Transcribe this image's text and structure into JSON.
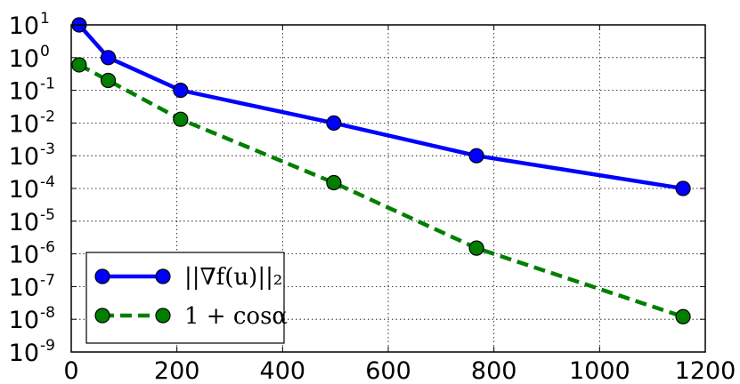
{
  "chart_data": {
    "type": "line",
    "title": "",
    "xlabel": "",
    "ylabel": "",
    "xlim": [
      0,
      1200
    ],
    "ylim": [
      1e-09,
      10
    ],
    "y_scale": "log",
    "grid": true,
    "legend_position": "bottom-left",
    "x_ticks": [
      {
        "value": 0,
        "label": "0"
      },
      {
        "value": 200,
        "label": "200"
      },
      {
        "value": 400,
        "label": "400"
      },
      {
        "value": 600,
        "label": "600"
      },
      {
        "value": 800,
        "label": "800"
      },
      {
        "value": 1000,
        "label": "1000"
      },
      {
        "value": 1200,
        "label": "1200"
      }
    ],
    "y_ticks": [
      {
        "value": 10,
        "base": "10",
        "exp": "1"
      },
      {
        "value": 1,
        "base": "10",
        "exp": "0"
      },
      {
        "value": 0.1,
        "base": "10",
        "exp": "-1"
      },
      {
        "value": 0.01,
        "base": "10",
        "exp": "-2"
      },
      {
        "value": 0.001,
        "base": "10",
        "exp": "-3"
      },
      {
        "value": 0.0001,
        "base": "10",
        "exp": "-4"
      },
      {
        "value": 1e-05,
        "base": "10",
        "exp": "-5"
      },
      {
        "value": 1e-06,
        "base": "10",
        "exp": "-6"
      },
      {
        "value": 1e-07,
        "base": "10",
        "exp": "-7"
      },
      {
        "value": 1e-08,
        "base": "10",
        "exp": "-8"
      },
      {
        "value": 1e-09,
        "base": "10",
        "exp": "-9"
      }
    ],
    "series": [
      {
        "name": "||∇f(u)||₂",
        "color": "#0000ff",
        "style": "solid",
        "x": [
          15,
          70,
          207,
          497,
          767,
          1158
        ],
        "y": [
          10,
          1.0,
          0.1,
          0.01,
          0.001,
          0.0001
        ]
      },
      {
        "name": "1 + cosα",
        "color": "#007f00",
        "style": "dashed",
        "x": [
          15,
          70,
          207,
          497,
          767,
          1158
        ],
        "y": [
          0.6,
          0.2,
          0.013,
          0.00015,
          1.5e-06,
          1.2e-08
        ]
      }
    ]
  }
}
